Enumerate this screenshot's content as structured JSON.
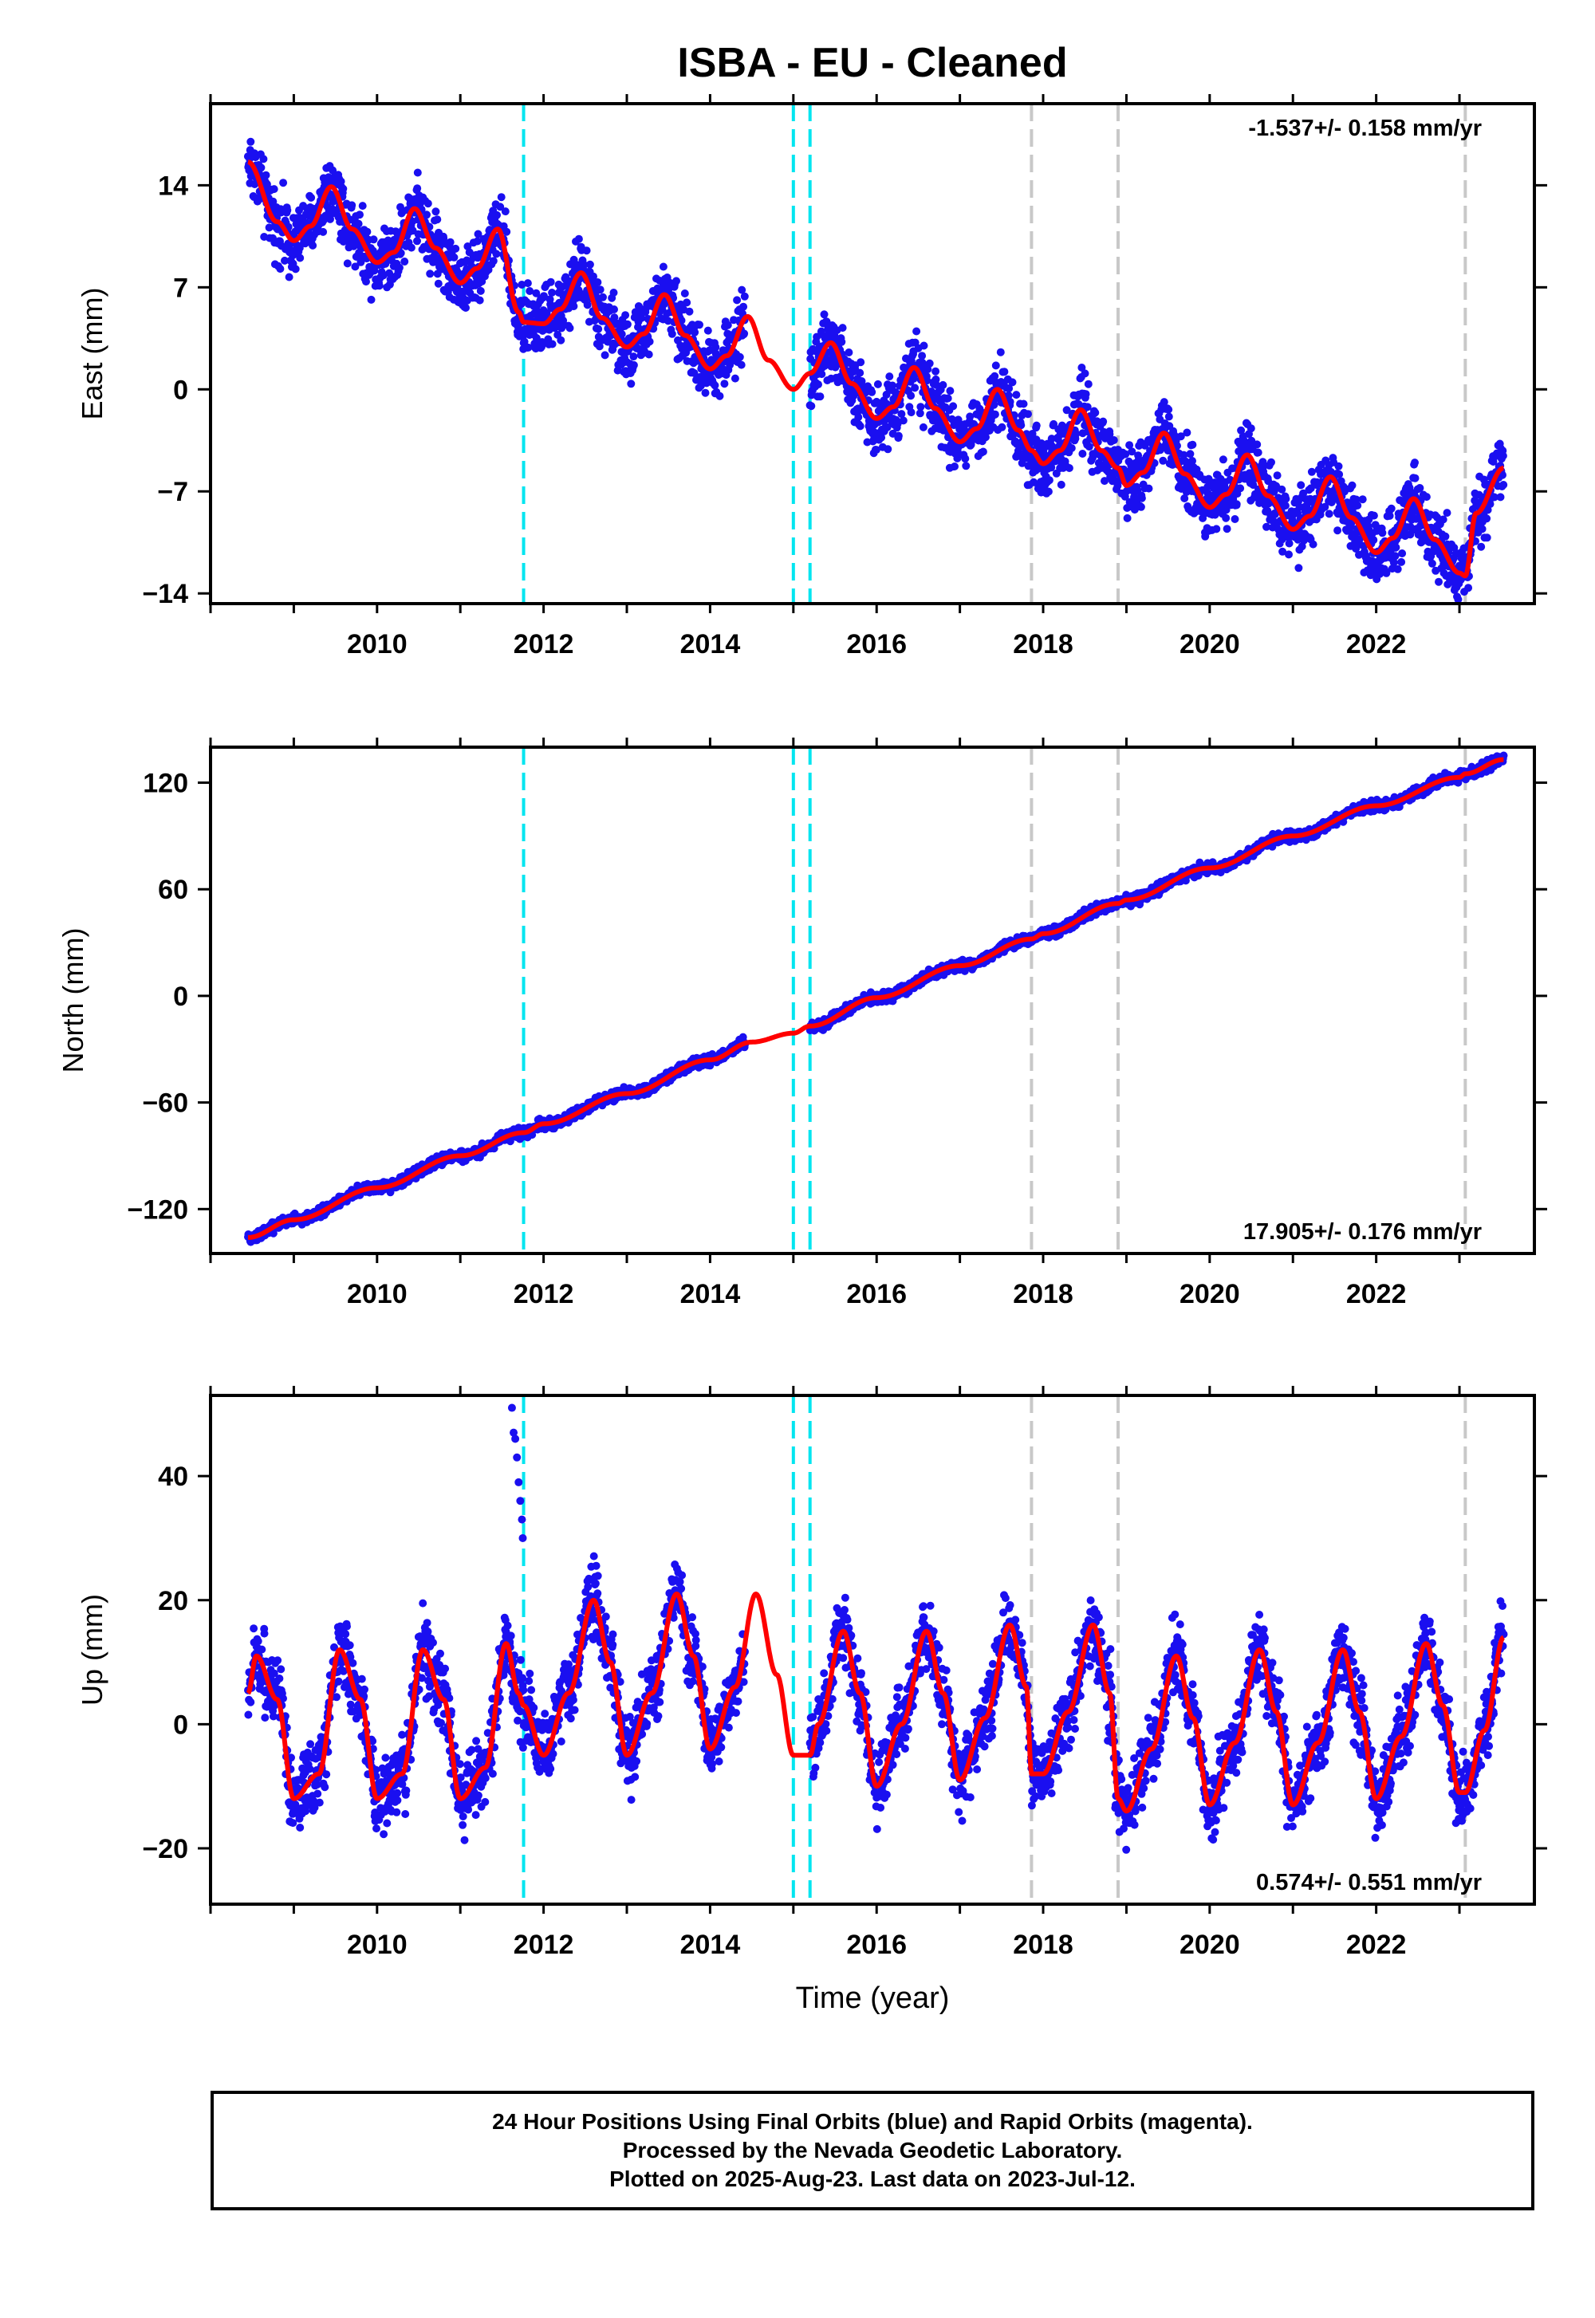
{
  "title": "ISBA  - EU - Cleaned",
  "colors": {
    "final_points": "#1a0ff0",
    "model": "#ff0000",
    "antenna_event": "#00e5f0",
    "equipment_event": "#c8c8c8",
    "axes": "#000000"
  },
  "events": {
    "antenna": [
      2011.76,
      2015.0,
      2015.2
    ],
    "equipment": [
      2017.86,
      2018.9,
      2023.07
    ]
  },
  "footer": {
    "line1": "24 Hour Positions Using Final Orbits (blue) and Rapid Orbits (magenta).",
    "line2": "Processed by the Nevada Geodetic Laboratory.",
    "line3": "Plotted on 2025-Aug-23. Last data on 2023-Jul-12."
  },
  "chart_data": [
    {
      "type": "scatter",
      "component": "east",
      "ylabel": "East (mm)",
      "xlabel": "",
      "xlim": [
        2008.0,
        2023.9
      ],
      "ylim": [
        -14.7,
        19.6
      ],
      "xticks": [
        2010,
        2012,
        2014,
        2016,
        2018,
        2020,
        2022
      ],
      "yticks": [
        14,
        7,
        0,
        -7,
        -14
      ],
      "rate_label": "-1.537+/- 0.158 mm/yr",
      "rate_position": "top-right",
      "data_span": [
        2008.45,
        2023.53
      ],
      "gap": [
        2014.42,
        2015.2
      ],
      "series": [
        {
          "name": "Final Orbits",
          "style": "points",
          "note": "daily positions scatter about the model, spread about +/- 1.5 mm"
        },
        {
          "name": "Model",
          "style": "line",
          "x": [
            2008.45,
            2008.8,
            2009.0,
            2009.2,
            2009.45,
            2009.7,
            2010.0,
            2010.2,
            2010.45,
            2010.7,
            2011.0,
            2011.2,
            2011.45,
            2011.7,
            2011.76,
            2012.0,
            2012.2,
            2012.45,
            2012.7,
            2013.0,
            2013.2,
            2013.45,
            2013.7,
            2014.0,
            2014.2,
            2014.45,
            2014.7,
            2015.0,
            2015.2,
            2015.45,
            2015.7,
            2016.0,
            2016.2,
            2016.45,
            2016.7,
            2017.0,
            2017.2,
            2017.45,
            2017.7,
            2017.86,
            2018.0,
            2018.2,
            2018.45,
            2018.7,
            2018.9,
            2019.0,
            2019.2,
            2019.45,
            2019.7,
            2020.0,
            2020.2,
            2020.45,
            2020.7,
            2021.0,
            2021.2,
            2021.45,
            2021.7,
            2022.0,
            2022.2,
            2022.45,
            2022.7,
            2023.0,
            2023.07,
            2023.2,
            2023.53
          ],
          "y": [
            15.6,
            11.5,
            10.2,
            11.2,
            13.9,
            11.0,
            8.7,
            9.4,
            12.4,
            9.7,
            7.3,
            8.3,
            11.0,
            5.3,
            4.6,
            4.5,
            5.5,
            8.0,
            4.9,
            2.9,
            3.8,
            6.5,
            3.7,
            1.4,
            2.3,
            5.0,
            2.0,
            0.0,
            1.1,
            3.2,
            0.4,
            -2.0,
            -1.2,
            1.5,
            -1.3,
            -3.6,
            -2.7,
            0.0,
            -2.8,
            -4.2,
            -5.1,
            -4.2,
            -1.4,
            -4.2,
            -5.4,
            -6.6,
            -5.7,
            -3.0,
            -5.8,
            -8.1,
            -7.2,
            -4.5,
            -7.3,
            -9.6,
            -8.7,
            -6.0,
            -8.8,
            -11.2,
            -10.2,
            -7.5,
            -10.3,
            -12.6,
            -12.8,
            -8.5,
            -5.4
          ]
        }
      ]
    },
    {
      "type": "scatter",
      "component": "north",
      "ylabel": "North (mm)",
      "xlabel": "",
      "xlim": [
        2008.0,
        2023.9
      ],
      "ylim": [
        -145,
        140
      ],
      "xticks": [
        2010,
        2012,
        2014,
        2016,
        2018,
        2020,
        2022
      ],
      "yticks": [
        120,
        60,
        0,
        -60,
        -120
      ],
      "rate_label": "17.905+/- 0.176 mm/yr",
      "rate_position": "bottom-right",
      "data_span": [
        2008.45,
        2023.53
      ],
      "gap": [
        2014.42,
        2015.2
      ],
      "series": [
        {
          "name": "Final Orbits",
          "style": "points",
          "note": "daily positions scatter about the model, spread about +/- 2 mm"
        },
        {
          "name": "Model",
          "style": "line",
          "x": [
            2008.45,
            2009.0,
            2010.0,
            2011.0,
            2011.76,
            2012.0,
            2013.0,
            2014.0,
            2014.5,
            2015.0,
            2015.2,
            2016.0,
            2017.0,
            2017.86,
            2018.0,
            2018.9,
            2019.0,
            2020.0,
            2021.0,
            2022.0,
            2023.0,
            2023.07,
            2023.53
          ],
          "y": [
            -136,
            -126,
            -108,
            -90,
            -77,
            -72,
            -55,
            -36,
            -26,
            -21,
            -17,
            -1,
            17,
            32,
            35,
            52,
            54,
            72,
            90,
            107,
            123,
            125,
            133
          ]
        }
      ]
    },
    {
      "type": "scatter",
      "component": "up",
      "ylabel": "Up (mm)",
      "xlabel": "Time (year)",
      "xlim": [
        2008.0,
        2023.9
      ],
      "ylim": [
        -29,
        53
      ],
      "xticks": [
        2010,
        2012,
        2014,
        2016,
        2018,
        2020,
        2022
      ],
      "yticks": [
        40,
        20,
        0,
        -20
      ],
      "rate_label": "0.574+/- 0.551 mm/yr",
      "rate_position": "bottom-right",
      "data_span": [
        2008.45,
        2023.53
      ],
      "gap": [
        2014.42,
        2015.2
      ],
      "outliers": {
        "x": [
          2011.62,
          2011.64,
          2011.66,
          2011.68,
          2011.7,
          2011.72,
          2011.74,
          2011.75
        ],
        "y": [
          51,
          47,
          46,
          43,
          39,
          36,
          33,
          30
        ]
      },
      "series": [
        {
          "name": "Final Orbits",
          "style": "points",
          "note": "daily positions scatter about the model, spread about +/- 4 mm"
        },
        {
          "name": "Model",
          "style": "line",
          "x": [
            2008.45,
            2008.55,
            2008.8,
            2009.0,
            2009.3,
            2009.55,
            2009.8,
            2010.0,
            2010.3,
            2010.55,
            2010.8,
            2011.0,
            2011.3,
            2011.55,
            2011.7,
            2011.76,
            2012.0,
            2012.3,
            2012.6,
            2012.8,
            2013.0,
            2013.3,
            2013.6,
            2013.8,
            2014.0,
            2014.3,
            2014.55,
            2014.8,
            2015.0,
            2015.2,
            2015.3,
            2015.6,
            2015.8,
            2016.0,
            2016.3,
            2016.6,
            2016.8,
            2017.0,
            2017.3,
            2017.6,
            2017.8,
            2017.86,
            2018.0,
            2018.3,
            2018.6,
            2018.8,
            2018.9,
            2019.0,
            2019.3,
            2019.6,
            2019.8,
            2020.0,
            2020.3,
            2020.6,
            2020.8,
            2021.0,
            2021.3,
            2021.6,
            2021.8,
            2022.0,
            2022.3,
            2022.6,
            2022.8,
            2023.0,
            2023.07,
            2023.3,
            2023.53
          ],
          "y": [
            5,
            11,
            4,
            -12,
            -8,
            12,
            4,
            -12,
            -8,
            12,
            4,
            -12,
            -7,
            13,
            5,
            3,
            -5,
            5,
            20,
            10,
            -5,
            5,
            21,
            11,
            -4,
            6,
            21,
            8,
            -5,
            -5,
            0,
            15,
            5,
            -10,
            0,
            15,
            5,
            -9,
            1,
            16,
            6,
            -8,
            -8,
            2,
            16,
            5,
            -12,
            -14,
            -4,
            11,
            1,
            -13,
            -3,
            12,
            2,
            -13,
            -3,
            12,
            2,
            -12,
            -2,
            13,
            3,
            -11,
            -11,
            -1,
            14
          ]
        }
      ]
    }
  ]
}
